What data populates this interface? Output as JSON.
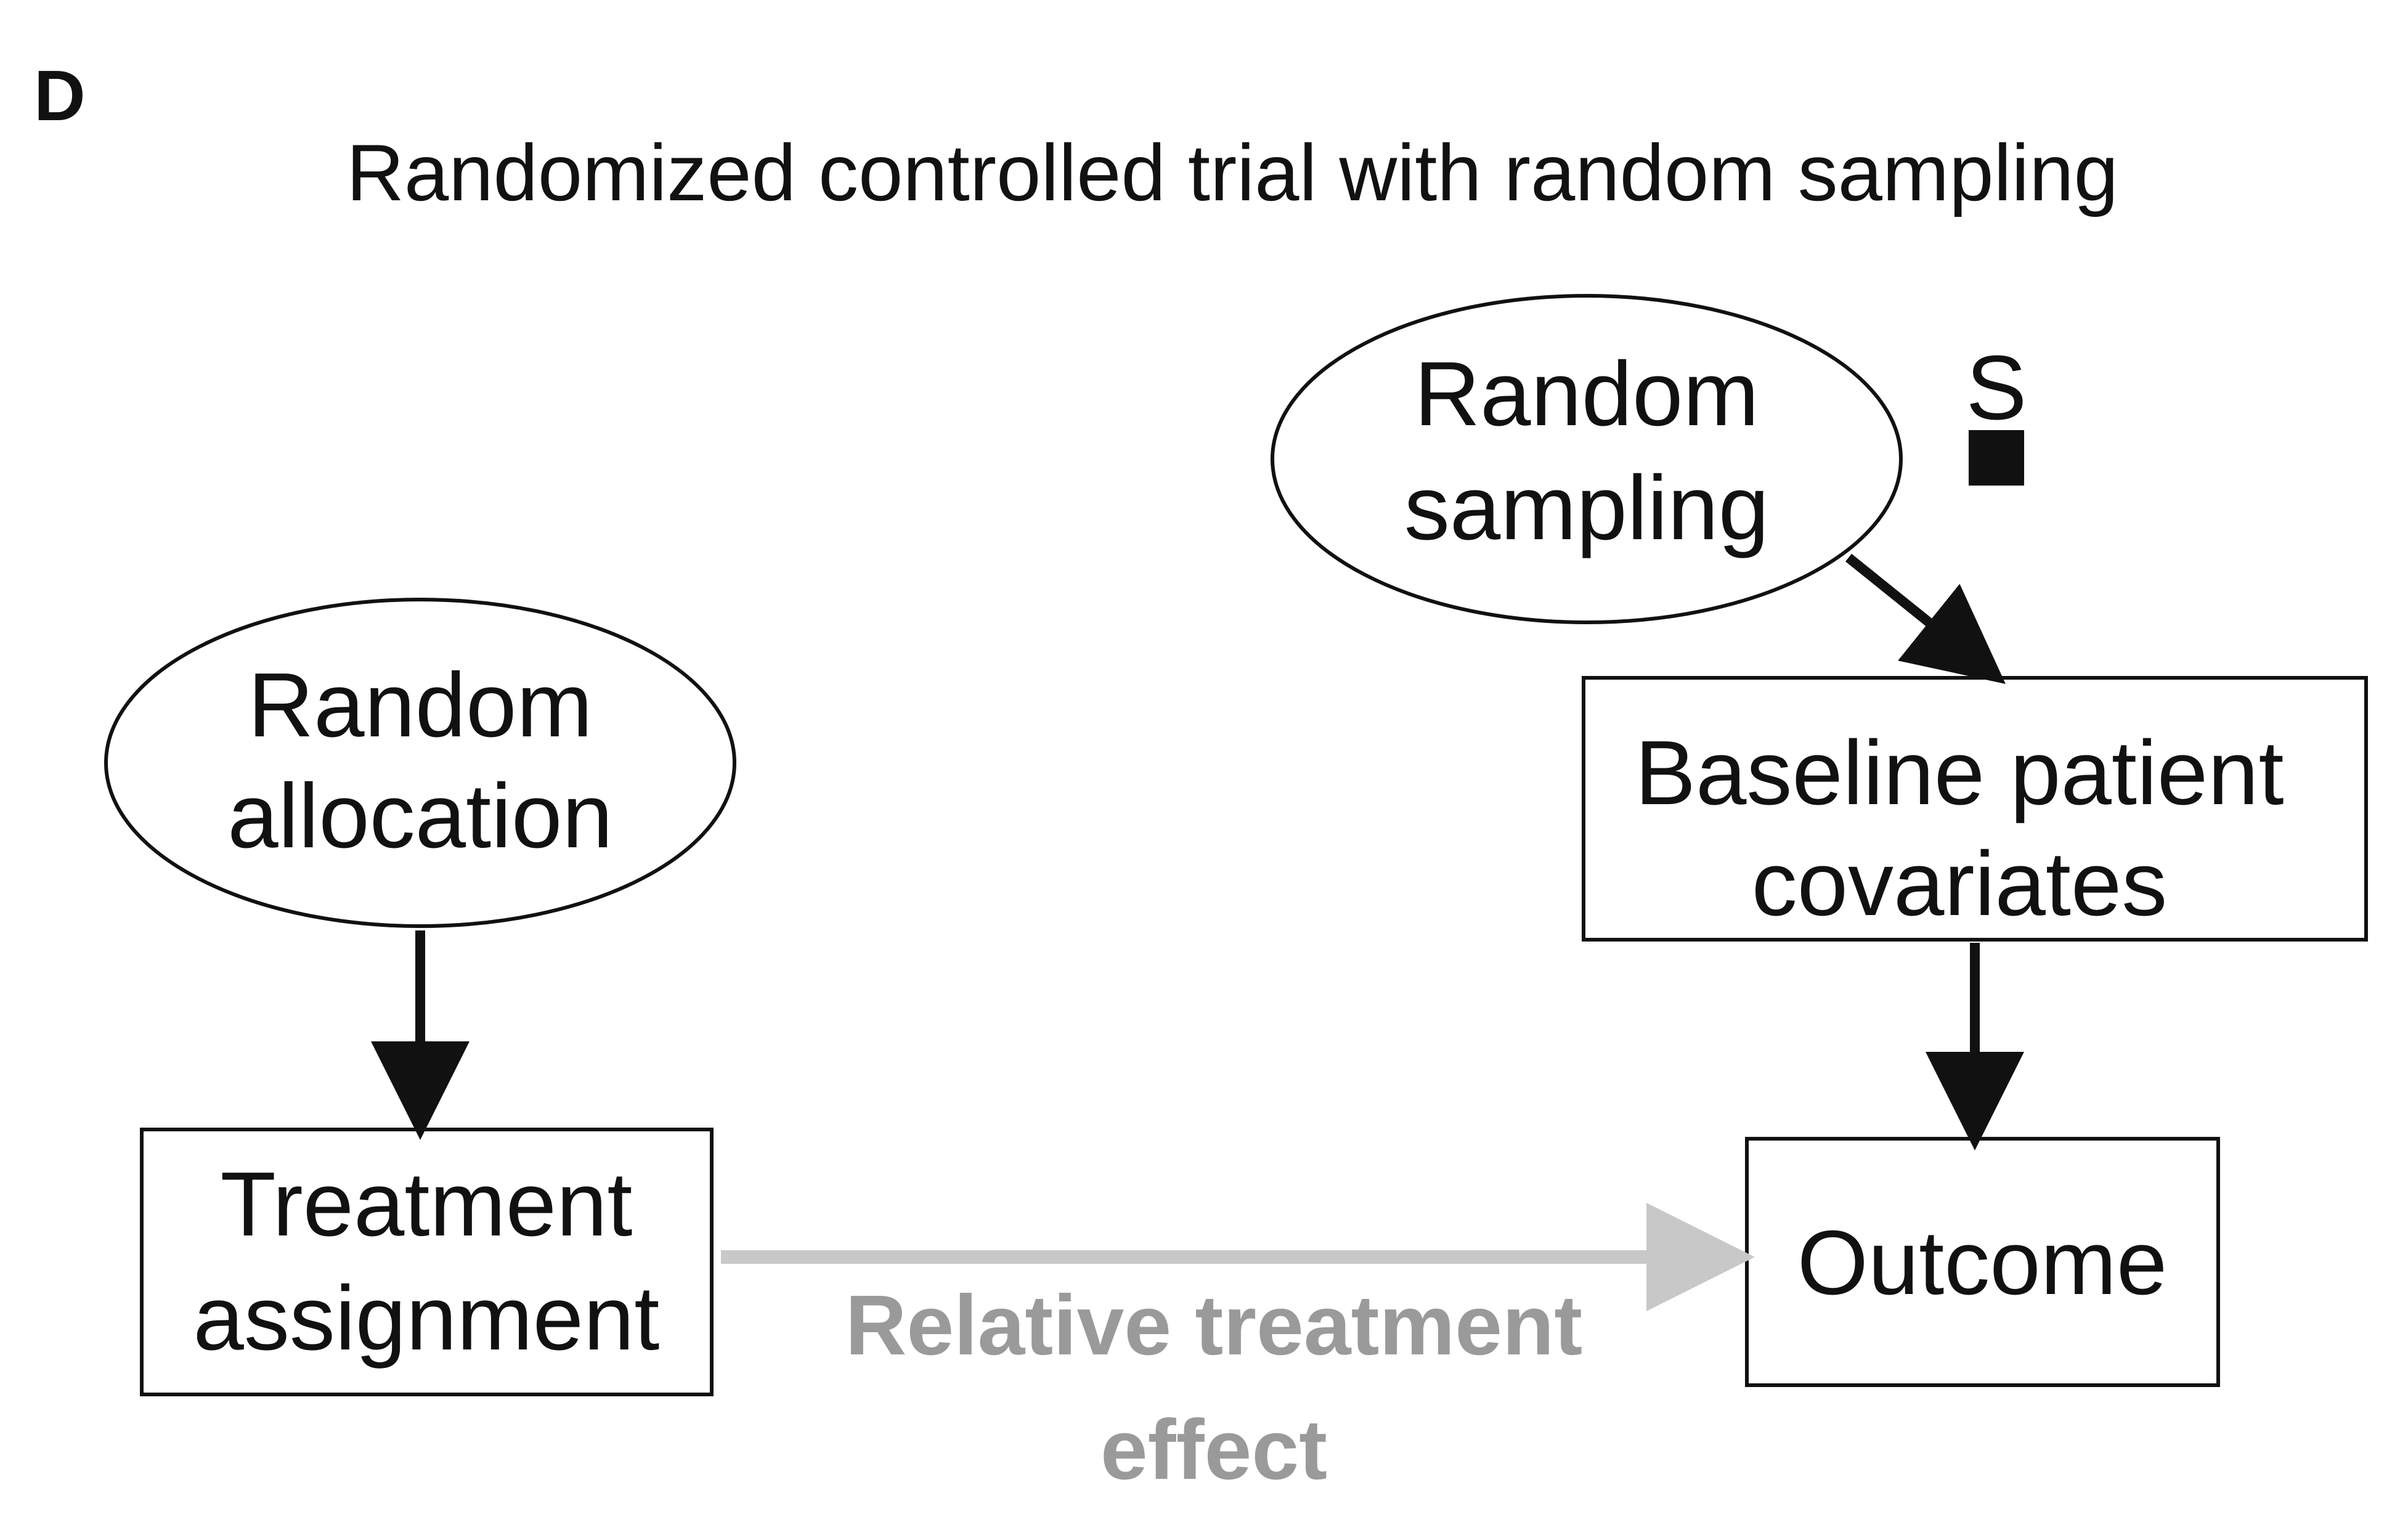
{
  "panel_label": "D",
  "title": "Randomized controlled trial with random sampling",
  "nodes": {
    "random_sampling": {
      "line1": "Random",
      "line2": "sampling"
    },
    "selection": {
      "label": "S"
    },
    "baseline": {
      "line1": "Baseline patient",
      "line2": "covariates"
    },
    "random_allocation": {
      "line1": "Random",
      "line2": "allocation"
    },
    "treatment": {
      "line1": "Treatment",
      "line2": "assignment"
    },
    "outcome": {
      "label": "Outcome"
    }
  },
  "edges": {
    "effect": {
      "line1": "Relative treatment",
      "line2": "effect"
    }
  },
  "colors": {
    "main": "#111111",
    "effect_arrow": "#c8c8c8",
    "effect_text": "#9a9a9a"
  }
}
